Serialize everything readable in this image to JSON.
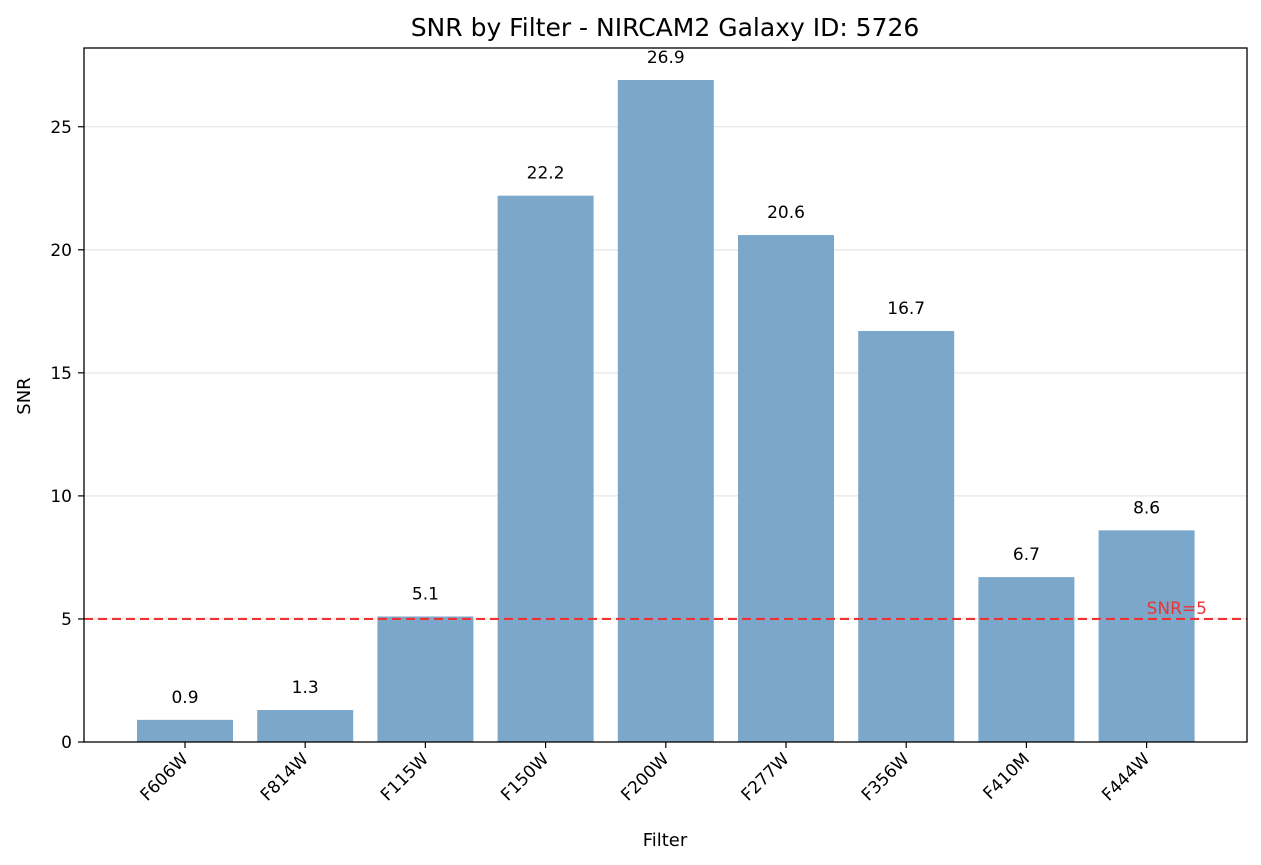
{
  "chart_data": {
    "type": "bar",
    "title": "SNR by Filter - NIRCAM2 Galaxy ID: 5726",
    "xlabel": "Filter",
    "ylabel": "SNR",
    "categories": [
      "F606W",
      "F814W",
      "F115W",
      "F150W",
      "F200W",
      "F277W",
      "F356W",
      "F410M",
      "F444W"
    ],
    "values": [
      0.9,
      1.3,
      5.1,
      22.2,
      26.9,
      20.6,
      16.7,
      6.7,
      8.6
    ],
    "data_labels": [
      "0.9",
      "1.3",
      "5.1",
      "22.2",
      "26.9",
      "20.6",
      "16.7",
      "6.7",
      "8.6"
    ],
    "ylim": [
      0,
      28.2
    ],
    "yticks": [
      0,
      5,
      10,
      15,
      20,
      25
    ],
    "grid": "horizontal",
    "bar_color": "#7ba7cb",
    "reference_line": {
      "value": 5,
      "label": "SNR=5",
      "color": "#ee3333"
    }
  }
}
